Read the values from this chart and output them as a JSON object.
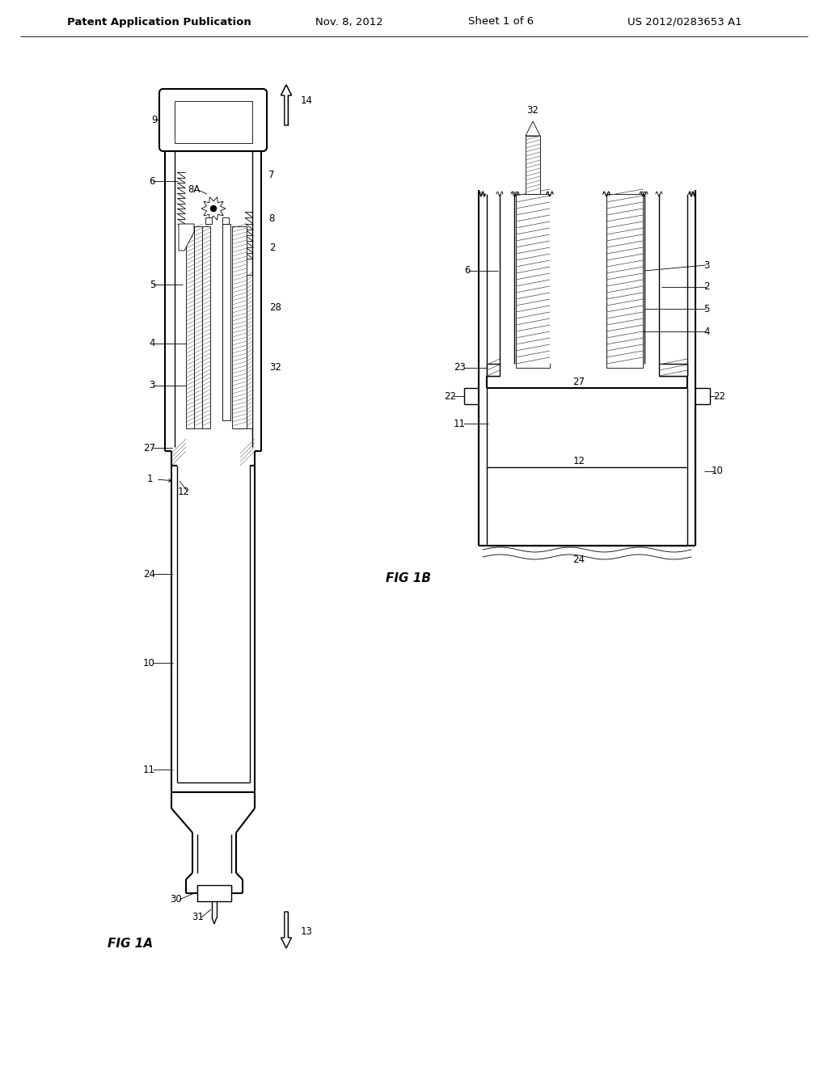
{
  "header_left": "Patent Application Publication",
  "header_mid": "Nov. 8, 2012",
  "header_right1": "Sheet 1 of 6",
  "header_right2": "US 2012/0283653 A1",
  "fig1a_label": "FIG 1A",
  "fig1b_label": "FIG 1B",
  "bg": "#ffffff",
  "lc": "#000000",
  "fig_w": 10.24,
  "fig_h": 13.2,
  "dpi": 100
}
